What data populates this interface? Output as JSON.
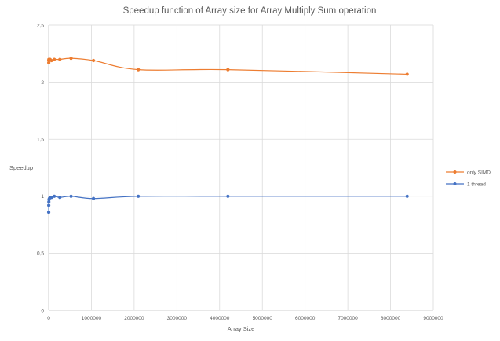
{
  "chart_data": {
    "type": "scatter",
    "title": "Speedup function of Array size  for Array Multiply Sum operation",
    "xlabel": "Array Size",
    "ylabel": "Speedup",
    "xlim": [
      0,
      9000000
    ],
    "ylim": [
      0,
      2.5
    ],
    "xticks": [
      0,
      1000000,
      2000000,
      3000000,
      4000000,
      5000000,
      6000000,
      7000000,
      8000000,
      9000000
    ],
    "xtick_labels": [
      "0",
      "1000000",
      "2000000",
      "3000000",
      "4000000",
      "5000000",
      "6000000",
      "7000000",
      "8000000",
      "9000000"
    ],
    "yticks": [
      0,
      0.5,
      1,
      1.5,
      2,
      2.5
    ],
    "ytick_labels": [
      "0",
      "0,5",
      "1",
      "1,5",
      "2",
      "2,5"
    ],
    "grid": "vertical and horizontal",
    "legend_position": "right",
    "smoothed_lines": true,
    "series": [
      {
        "name": "only SIMD",
        "color": "#ED7D31",
        "x": [
          1024,
          2048,
          4096,
          8192,
          16384,
          32768,
          65536,
          131072,
          262144,
          524288,
          1048576,
          2097152,
          4194304,
          8388608
        ],
        "y": [
          2.19,
          2.17,
          2.2,
          2.19,
          2.2,
          2.2,
          2.19,
          2.2,
          2.2,
          2.21,
          2.19,
          2.11,
          2.11,
          2.07
        ]
      },
      {
        "name": "1 thread",
        "color": "#4472C4",
        "x": [
          1024,
          2048,
          4096,
          8192,
          16384,
          32768,
          65536,
          131072,
          262144,
          524288,
          1048576,
          2097152,
          4194304,
          8388608
        ],
        "y": [
          0.86,
          0.92,
          0.95,
          0.97,
          0.98,
          0.99,
          0.99,
          1.0,
          0.99,
          1.0,
          0.98,
          1.0,
          1.0,
          1.0
        ]
      }
    ]
  }
}
